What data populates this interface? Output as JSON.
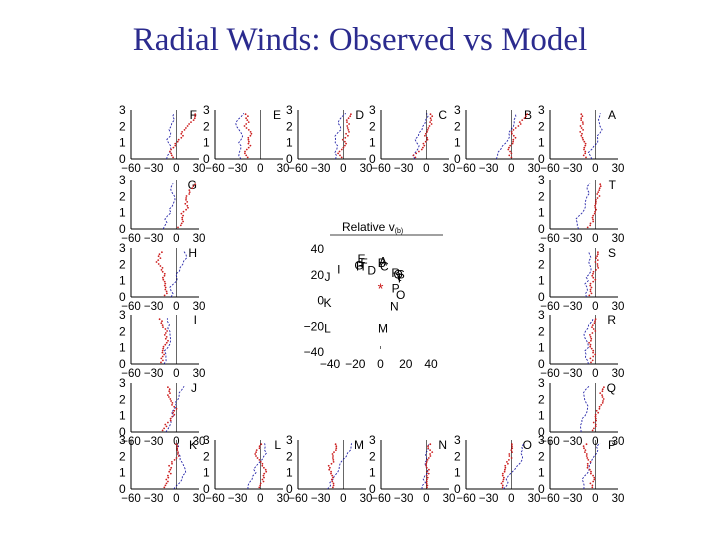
{
  "title": "Radial Winds: Observed vs Model",
  "colors": {
    "title": "#2b2b8e",
    "observed": "#cc1f1f",
    "model": "#2424a8",
    "axis": "#000000"
  },
  "chart_data": [
    {
      "type": "scatter",
      "title": "Relative v",
      "subtitle_fragment": "(b)",
      "xlim": [
        -40,
        40
      ],
      "ylim": [
        -40,
        40
      ],
      "xticks": [
        "−40",
        "−20",
        "0",
        "20",
        "40"
      ],
      "yticks": [
        "40",
        "20",
        "0",
        "−20",
        "−40"
      ],
      "points": [
        {
          "label": "A",
          "x": 2,
          "y": 31
        },
        {
          "label": "B",
          "x": 1,
          "y": 30
        },
        {
          "label": "C",
          "x": 3,
          "y": 27
        },
        {
          "label": "D",
          "x": -7,
          "y": 24
        },
        {
          "label": "E",
          "x": -15,
          "y": 33
        },
        {
          "label": "F",
          "x": -13,
          "y": 30
        },
        {
          "label": "G",
          "x": -17,
          "y": 28
        },
        {
          "label": "H",
          "x": -16,
          "y": 27
        },
        {
          "label": "I",
          "x": -33,
          "y": 25
        },
        {
          "label": "J",
          "x": -42,
          "y": 19
        },
        {
          "label": "K",
          "x": -42,
          "y": -1
        },
        {
          "label": "L",
          "x": -42,
          "y": -21
        },
        {
          "label": "M",
          "x": 2,
          "y": -21
        },
        {
          "label": "N",
          "x": 11,
          "y": -4
        },
        {
          "label": "O",
          "x": 16,
          "y": 5
        },
        {
          "label": "P",
          "x": 12,
          "y": 10
        },
        {
          "label": "Q",
          "x": 14,
          "y": 21
        },
        {
          "label": "R",
          "x": 12,
          "y": 22
        },
        {
          "label": "S",
          "x": 16,
          "y": 21
        },
        {
          "label": "T",
          "x": 15,
          "y": 18
        }
      ],
      "marker": {
        "label": "*",
        "x": 0,
        "y": 10
      }
    },
    {
      "type": "line",
      "panels": [
        "F",
        "E",
        "D",
        "C",
        "B",
        "A",
        "G",
        "T",
        "H",
        "S",
        "I",
        "R",
        "J",
        "Q",
        "K",
        "L",
        "M",
        "N",
        "O",
        "P"
      ],
      "xticks": [
        "−60",
        "−30",
        "0",
        "30"
      ],
      "yticks": [
        "3",
        "2",
        "1",
        "0"
      ],
      "xlim": [
        -60,
        30
      ],
      "ylim": [
        0,
        3
      ],
      "series": [
        {
          "key": "observed",
          "style": "dots"
        },
        {
          "key": "model",
          "style": "dashed"
        }
      ]
    }
  ]
}
